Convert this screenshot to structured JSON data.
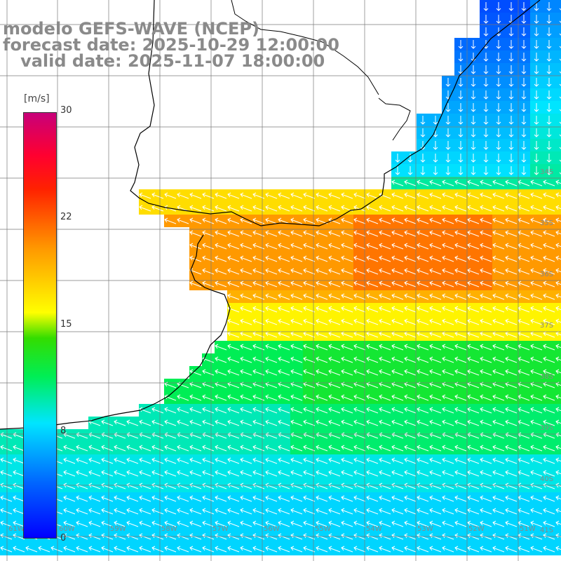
{
  "titles": {
    "model": "modelo GEFS-WAVE (NCEP)",
    "forecast": "forecast date: 2025-10-29 12:00:00",
    "valid": "   valid date: 2025-11-07 18:00:00"
  },
  "legend": {
    "unit": "[m/s]",
    "ticks": [
      "30",
      "22",
      "15",
      "8",
      "0"
    ],
    "colors": [
      "#0000ff",
      "#0066ff",
      "#00e5ff",
      "#00ee55",
      "#33dd00",
      "#ffff00",
      "#ff9900",
      "#ff2200",
      "#ff0030",
      "#c8007a"
    ]
  },
  "lat_labels": [
    "34S",
    "35S",
    "36S",
    "37S",
    "38S",
    "39S",
    "40S",
    "41S"
  ],
  "lon_labels": [
    "61W",
    "60W",
    "59W",
    "58W",
    "57W",
    "56W",
    "55W",
    "54W",
    "53W",
    "52W",
    "51W"
  ],
  "colors": {
    "land": "#ffffff",
    "grid": "#7a7a7a",
    "coast": "#000000",
    "arrow": "#ffffff",
    "title": "#8a8a8a"
  }
}
